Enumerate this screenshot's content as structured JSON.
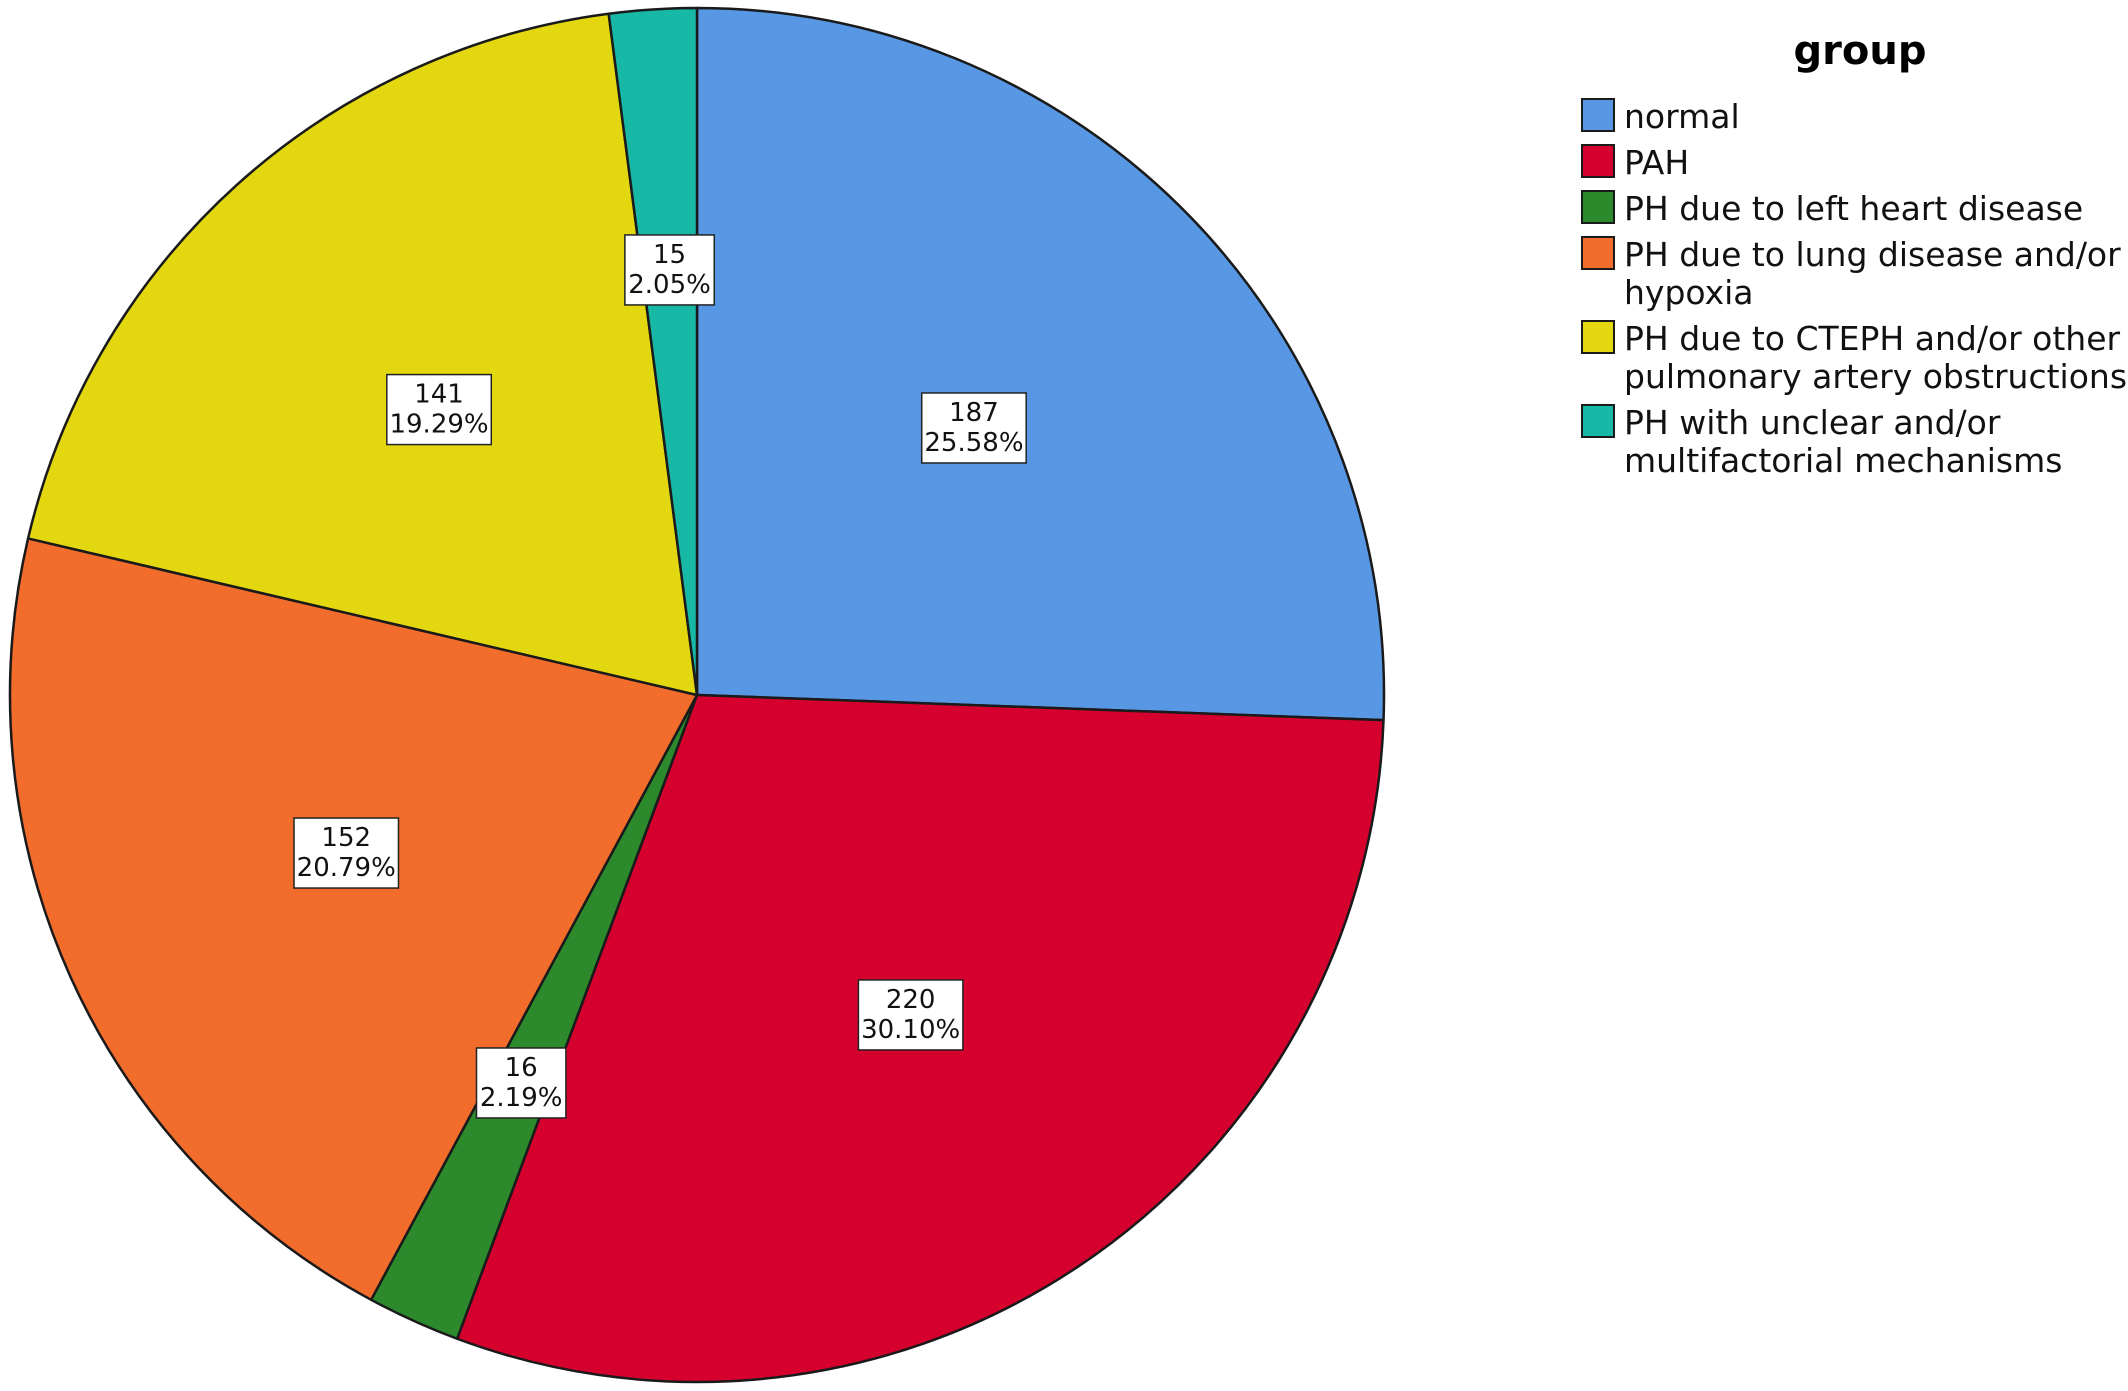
{
  "chart_data": {
    "type": "pie",
    "legend_title": "group",
    "legend_position": "right",
    "slices": [
      {
        "label": "normal",
        "legend_lines": [
          "normal"
        ],
        "count": 187,
        "percent": "25.58%",
        "color": "#5897E3"
      },
      {
        "label": "PAH",
        "legend_lines": [
          "PAH"
        ],
        "count": 220,
        "percent": "30.10%",
        "color": "#D6002E"
      },
      {
        "label": "PH due to left heart disease",
        "legend_lines": [
          "PH due to left heart disease"
        ],
        "count": 16,
        "percent": "2.19%",
        "color": "#2C8A2C"
      },
      {
        "label": "PH due to lung disease and/or hypoxia",
        "legend_lines": [
          "PH due to lung disease and/or",
          "hypoxia"
        ],
        "count": 152,
        "percent": "20.79%",
        "color": "#F26C2C"
      },
      {
        "label": "PH due to CTEPH and/or other pulmonary artery obstructions",
        "legend_lines": [
          "PH due to CTEPH and/or other",
          "pulmonary artery obstructions"
        ],
        "count": 141,
        "percent": "19.29%",
        "color": "#E3D80F"
      },
      {
        "label": "PH with unclear and/or multifactorial mechanisms",
        "legend_lines": [
          "PH with unclear and/or",
          "multifactorial mechanisms"
        ],
        "count": 15,
        "percent": "2.05%",
        "color": "#17B8A6"
      }
    ]
  }
}
